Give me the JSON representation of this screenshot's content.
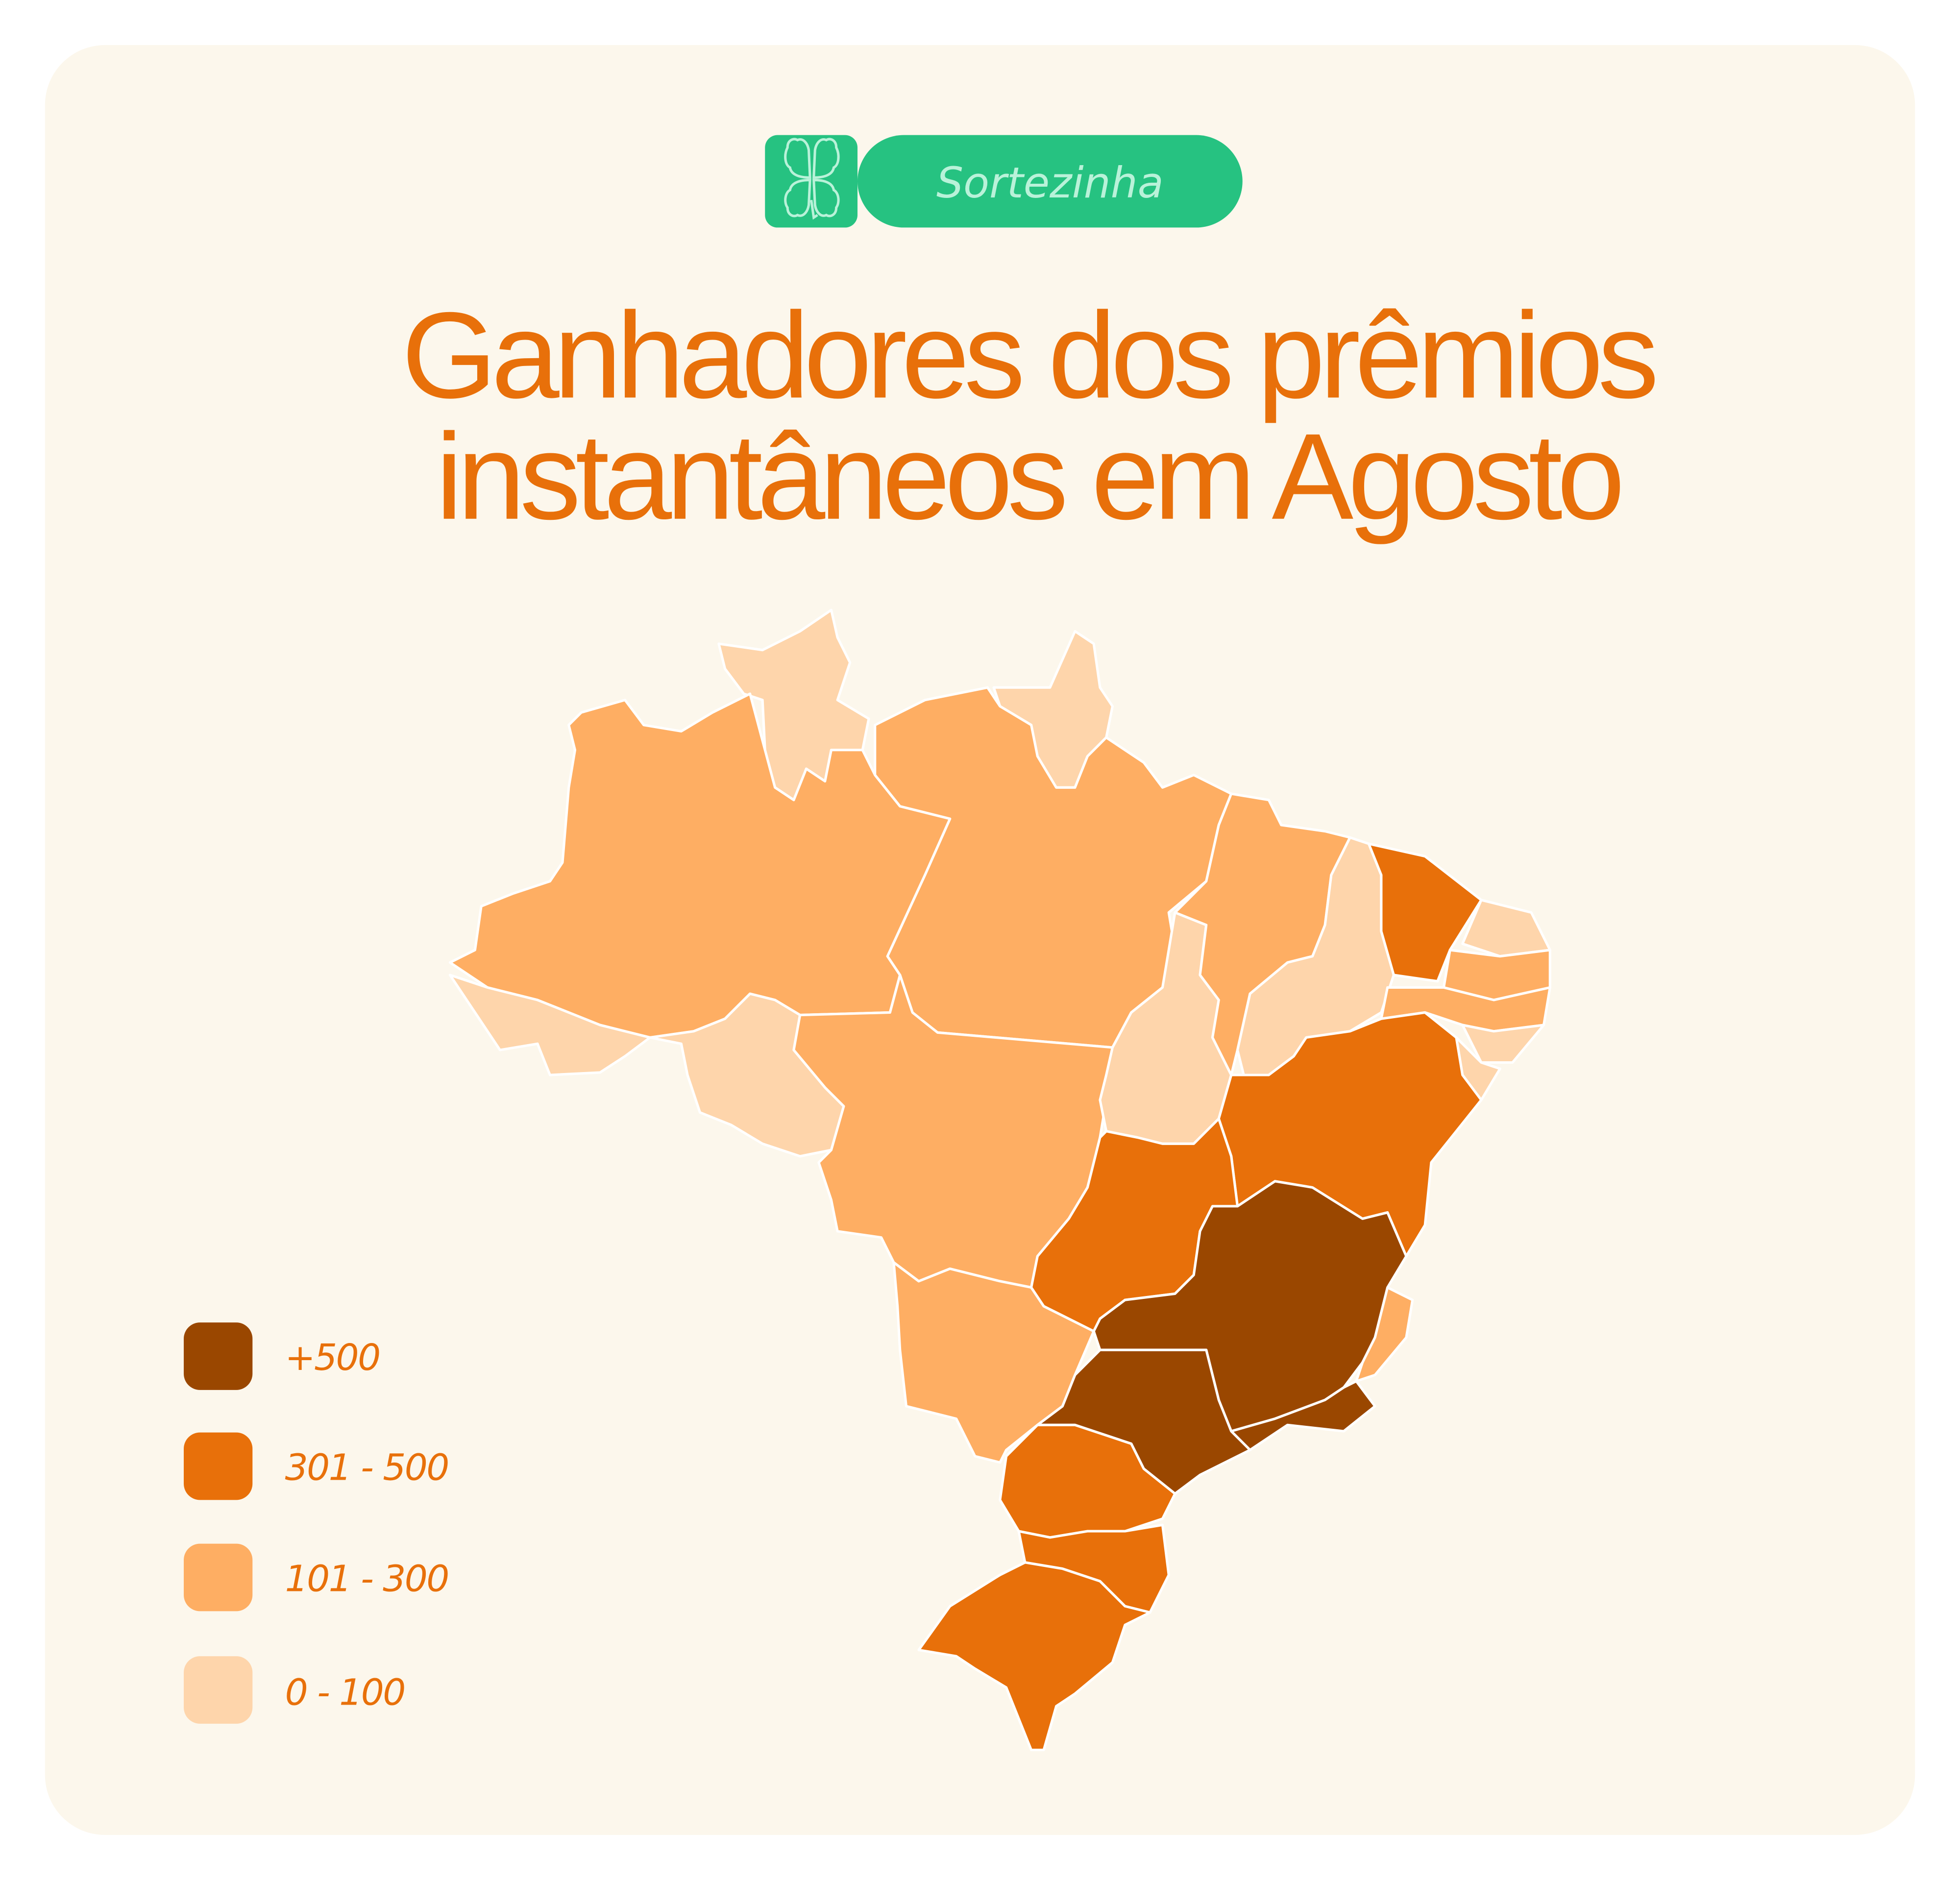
{
  "brand": {
    "name": "Sortezinha",
    "icon": "four-leaf-clover-icon",
    "color": "#26c281",
    "text_color": "#b9f2d9"
  },
  "title": {
    "line1": "Ganhadores dos prêmios",
    "line2": "instantâneos em Agosto"
  },
  "colors": {
    "background": "#fcf7ec",
    "title": "#e8700a"
  },
  "legend": [
    {
      "label": "+500",
      "color": "#9a4700"
    },
    {
      "label": "301 - 500",
      "color": "#e8700a"
    },
    {
      "label": "101 - 300",
      "color": "#feae63"
    },
    {
      "label": "0 - 100",
      "color": "#fed5ab"
    }
  ],
  "map": {
    "country": "Brasil",
    "states": [
      {
        "id": "RR",
        "category": "0 - 100"
      },
      {
        "id": "AP",
        "category": "0 - 100"
      },
      {
        "id": "AM",
        "category": "101 - 300"
      },
      {
        "id": "AC",
        "category": "0 - 100"
      },
      {
        "id": "RO",
        "category": "0 - 100"
      },
      {
        "id": "PA",
        "category": "101 - 300"
      },
      {
        "id": "MT",
        "category": "101 - 300"
      },
      {
        "id": "MS",
        "category": "101 - 300"
      },
      {
        "id": "TO",
        "category": "0 - 100"
      },
      {
        "id": "MA",
        "category": "101 - 300"
      },
      {
        "id": "PI",
        "category": "0 - 100"
      },
      {
        "id": "CE",
        "category": "301 - 500"
      },
      {
        "id": "RN",
        "category": "0 - 100"
      },
      {
        "id": "PB",
        "category": "101 - 300"
      },
      {
        "id": "PE",
        "category": "101 - 300"
      },
      {
        "id": "AL",
        "category": "0 - 100"
      },
      {
        "id": "SE",
        "category": "0 - 100"
      },
      {
        "id": "BA",
        "category": "301 - 500"
      },
      {
        "id": "GO",
        "category": "301 - 500"
      },
      {
        "id": "MG",
        "category": "+500"
      },
      {
        "id": "ES",
        "category": "101 - 300"
      },
      {
        "id": "RJ",
        "category": "+500"
      },
      {
        "id": "SP",
        "category": "+500"
      },
      {
        "id": "PR",
        "category": "301 - 500"
      },
      {
        "id": "SC",
        "category": "301 - 500"
      },
      {
        "id": "RS",
        "category": "301 - 500"
      }
    ]
  }
}
